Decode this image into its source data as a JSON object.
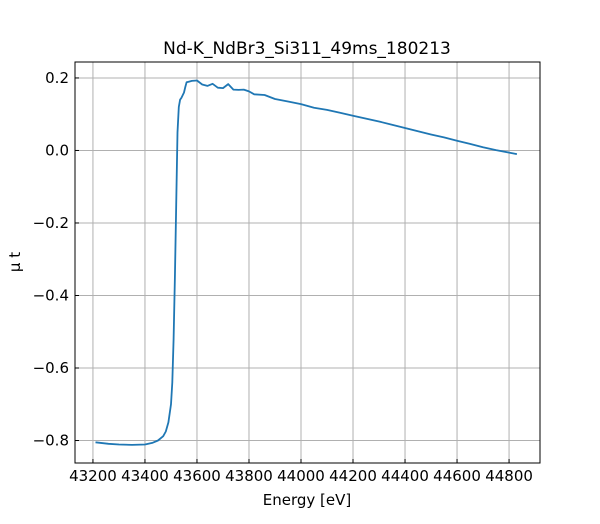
{
  "chart_data": {
    "type": "line",
    "title": "Nd-K_NdBr3_Si311_49ms_180213",
    "xlabel": "Energy [eV]",
    "ylabel": "μ t",
    "xlim": [
      43131,
      44919
    ],
    "ylim": [
      -0.862,
      0.244
    ],
    "xticks": [
      43200,
      43400,
      43600,
      43800,
      44000,
      44200,
      44400,
      44600,
      44800
    ],
    "xtick_labels": [
      "43200",
      "43400",
      "43600",
      "43800",
      "44000",
      "44200",
      "44400",
      "44600",
      "44800"
    ],
    "yticks": [
      0.2,
      0.0,
      -0.2,
      -0.4,
      -0.6,
      -0.8
    ],
    "ytick_labels": [
      "0.2",
      "0.0",
      "−0.2",
      "−0.4",
      "−0.6",
      "−0.8"
    ],
    "grid": true,
    "color": "#1f77b4",
    "series": [
      {
        "x": [
          43210,
          43260,
          43300,
          43350,
          43400,
          43430,
          43450,
          43470,
          43480,
          43490,
          43500,
          43505,
          43510,
          43515,
          43520,
          43525,
          43530,
          43535,
          43540,
          43550,
          43555,
          43560,
          43570,
          43580,
          43600,
          43620,
          43640,
          43660,
          43680,
          43700,
          43720,
          43740,
          43760,
          43780,
          43800,
          43820,
          43860,
          43900,
          43950,
          44000,
          44050,
          44100,
          44150,
          44200,
          44250,
          44300,
          44350,
          44400,
          44450,
          44500,
          44550,
          44600,
          44650,
          44700,
          44750,
          44800,
          44830
        ],
        "y": [
          -0.805,
          -0.809,
          -0.811,
          -0.812,
          -0.811,
          -0.806,
          -0.8,
          -0.788,
          -0.775,
          -0.75,
          -0.7,
          -0.64,
          -0.52,
          -0.35,
          -0.15,
          0.05,
          0.12,
          0.14,
          0.145,
          0.16,
          0.175,
          0.188,
          0.19,
          0.192,
          0.193,
          0.182,
          0.178,
          0.184,
          0.173,
          0.172,
          0.183,
          0.168,
          0.167,
          0.168,
          0.163,
          0.155,
          0.153,
          0.142,
          0.135,
          0.128,
          0.118,
          0.112,
          0.104,
          0.096,
          0.088,
          0.08,
          0.071,
          0.062,
          0.053,
          0.044,
          0.036,
          0.027,
          0.018,
          0.009,
          0.001,
          -0.006,
          -0.01
        ]
      }
    ]
  }
}
